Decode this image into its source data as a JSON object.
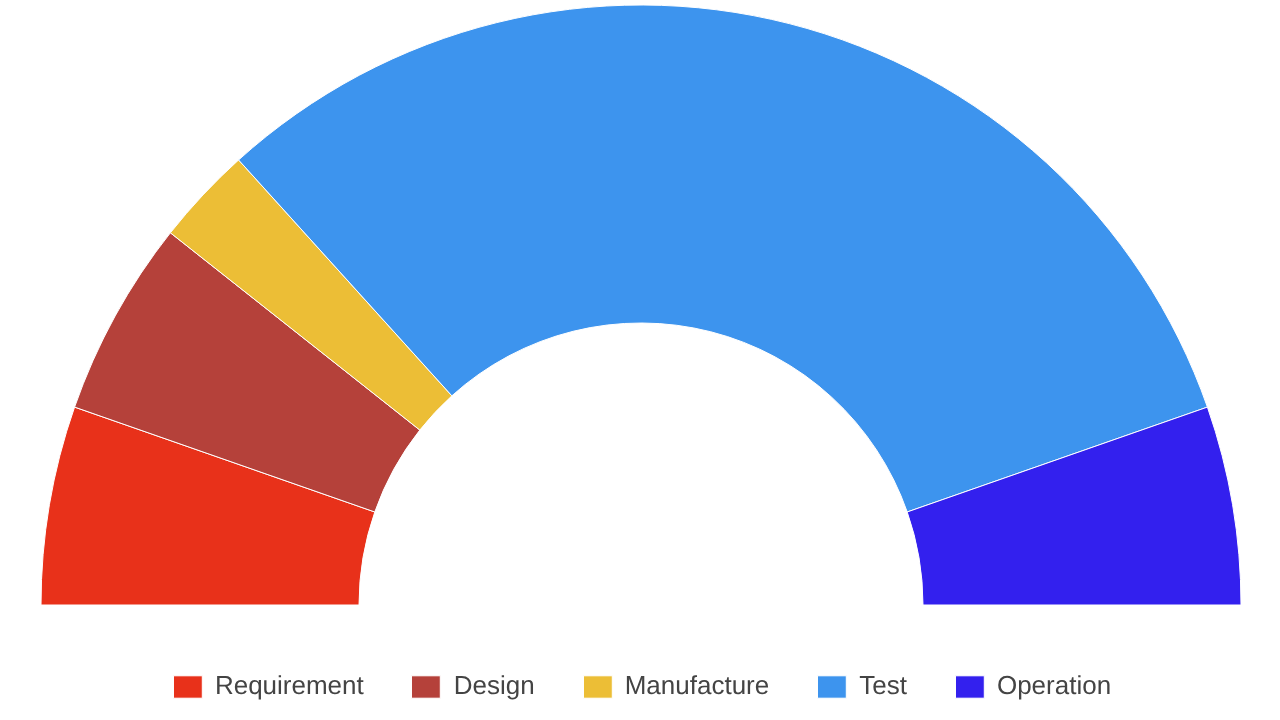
{
  "chart_data": {
    "type": "donut",
    "categories": [
      "Requirement",
      "Design",
      "Manufacture",
      "Test",
      "Operation"
    ],
    "values": [
      10.7,
      10.6,
      5.3,
      62.7,
      10.7
    ],
    "colors": [
      "#e8311a",
      "#b5413a",
      "#ecbe36",
      "#3d94ee",
      "#3320ee"
    ],
    "legend": "bottom"
  }
}
